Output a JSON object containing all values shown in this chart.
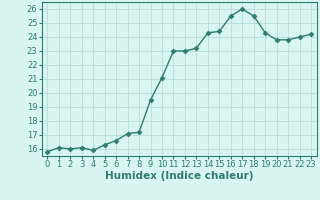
{
  "x": [
    0,
    1,
    2,
    3,
    4,
    5,
    6,
    7,
    8,
    9,
    10,
    11,
    12,
    13,
    14,
    15,
    16,
    17,
    18,
    19,
    20,
    21,
    22,
    23
  ],
  "y": [
    15.8,
    16.1,
    16.0,
    16.1,
    15.9,
    16.3,
    16.6,
    17.1,
    17.2,
    19.5,
    21.1,
    23.0,
    23.0,
    23.2,
    24.3,
    24.4,
    25.5,
    26.0,
    25.5,
    24.3,
    23.8,
    23.8,
    24.0,
    24.2
  ],
  "line_color": "#2e7d6e",
  "marker": "D",
  "marker_size": 2.5,
  "bg_color": "#d8f5f0",
  "grid_color": "#b8ddd8",
  "xlabel": "Humidex (Indice chaleur)",
  "xlim": [
    -0.5,
    23.5
  ],
  "ylim": [
    15.5,
    26.5
  ],
  "yticks": [
    16,
    17,
    18,
    19,
    20,
    21,
    22,
    23,
    24,
    25,
    26
  ],
  "xticks": [
    0,
    1,
    2,
    3,
    4,
    5,
    6,
    7,
    8,
    9,
    10,
    11,
    12,
    13,
    14,
    15,
    16,
    17,
    18,
    19,
    20,
    21,
    22,
    23
  ],
  "tick_label_fontsize": 6,
  "xlabel_fontsize": 7.5,
  "line_width": 1.0
}
